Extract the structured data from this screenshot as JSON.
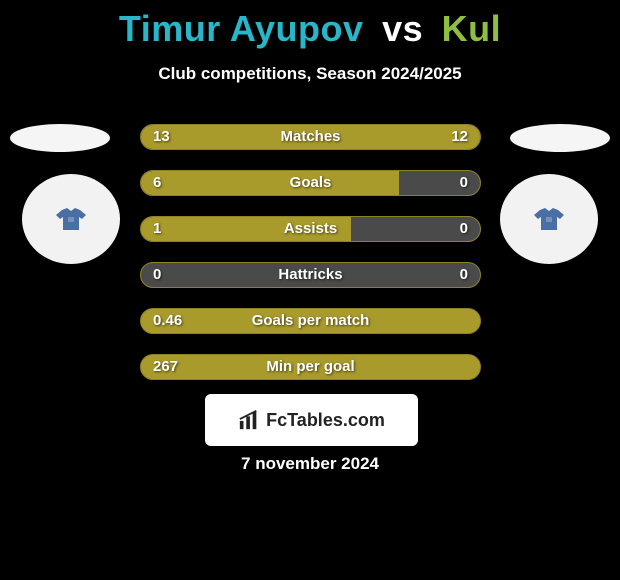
{
  "header": {
    "player1": "Timur Ayupov",
    "vs": "vs",
    "player2": "Kul",
    "player1_color": "#29b6c9",
    "player2_color": "#8fbf3f",
    "subtitle": "Club competitions, Season 2024/2025"
  },
  "bars": {
    "track_color": "#4a4a4a",
    "fill_color": "#a89a2b",
    "border_color": "#8e8326",
    "text_color": "#ffffff",
    "height": 26,
    "gap": 20,
    "radius": 13,
    "rows": [
      {
        "label": "Matches",
        "left_val": "13",
        "right_val": "12",
        "left_pct": 52,
        "right_pct": 48,
        "split": true
      },
      {
        "label": "Goals",
        "left_val": "6",
        "right_val": "0",
        "left_pct": 76,
        "right_pct": 0,
        "split": true
      },
      {
        "label": "Assists",
        "left_val": "1",
        "right_val": "0",
        "left_pct": 62,
        "right_pct": 0,
        "split": true
      },
      {
        "label": "Hattricks",
        "left_val": "0",
        "right_val": "0",
        "left_pct": 0,
        "right_pct": 0,
        "split": true
      },
      {
        "label": "Goals per match",
        "left_val": "0.46",
        "right_val": "",
        "left_pct": 100,
        "right_pct": 0,
        "split": false
      },
      {
        "label": "Min per goal",
        "left_val": "267",
        "right_val": "",
        "left_pct": 100,
        "right_pct": 0,
        "split": false
      }
    ]
  },
  "avatars": {
    "ellipse_color": "#f5f5f5",
    "circle_color": "#f2f2f2",
    "shirt1_color": "#4a6fa5",
    "shirt2_color": "#4a6fa5"
  },
  "badge": {
    "text": "FcTables.com",
    "bg": "#ffffff",
    "text_color": "#222222"
  },
  "footer": {
    "date": "7 november 2024"
  }
}
